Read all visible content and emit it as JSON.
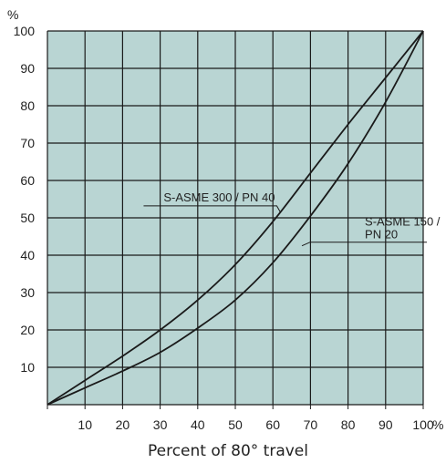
{
  "chart_data": {
    "type": "line",
    "xlabel": "Percent of 80° travel",
    "x_unit": "%",
    "y_unit": "%",
    "xlim": [
      0,
      100
    ],
    "ylim": [
      0,
      100
    ],
    "x_ticks": [
      10,
      20,
      30,
      40,
      50,
      60,
      70,
      80,
      90,
      100
    ],
    "y_ticks": [
      10,
      20,
      30,
      40,
      50,
      60,
      70,
      80,
      90,
      100
    ],
    "grid": true,
    "colors": {
      "plot_bg": "#b9d5d3",
      "grid": "#1a1a1a",
      "line": "#1a1a1a"
    },
    "series": [
      {
        "name": "S-ASME 300 / PN 40",
        "x": [
          0,
          10,
          20,
          30,
          40,
          50,
          60,
          70,
          80,
          90,
          100
        ],
        "y": [
          0,
          6.5,
          13,
          20,
          28,
          37.5,
          49,
          62,
          75,
          87.5,
          100
        ]
      },
      {
        "name": "S-ASME 150 / PN 20",
        "x": [
          0,
          10,
          20,
          30,
          40,
          50,
          60,
          70,
          80,
          90,
          100
        ],
        "y": [
          0,
          4.5,
          9,
          14,
          20.5,
          28,
          38,
          50.5,
          64.5,
          81,
          100
        ]
      }
    ],
    "annotations": [
      {
        "series": 0,
        "lines": [
          "S-ASME 300 / PN 40"
        ],
        "at_x": 62,
        "at_y": 51
      },
      {
        "series": 1,
        "lines": [
          "S-ASME 150 / PN 20"
        ],
        "at_x": 67,
        "at_y": 43
      }
    ]
  }
}
